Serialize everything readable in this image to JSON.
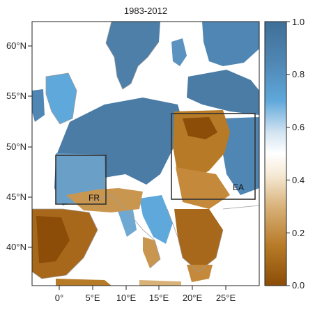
{
  "title": "1983-2012",
  "lat_labels": [
    "60°N",
    "55°N",
    "50°N",
    "45°N",
    "40°N"
  ],
  "lon_labels": [
    "0°",
    "5°E",
    "10°E",
    "15°E",
    "20°E",
    "25°E"
  ],
  "colorbar": {
    "ticks": [
      "1.0",
      "0.8",
      "0.6",
      "0.4",
      "0.2",
      "0.0"
    ],
    "colors": [
      "#8b4d07",
      "#b77a26",
      "#d9b27a",
      "#f6ead6",
      "#ffffff",
      "#d3e4f1",
      "#5fa8db",
      "#4f86b3",
      "#3f6f97"
    ]
  },
  "regions": [
    {
      "label": "FR"
    },
    {
      "label": "EA"
    }
  ]
}
